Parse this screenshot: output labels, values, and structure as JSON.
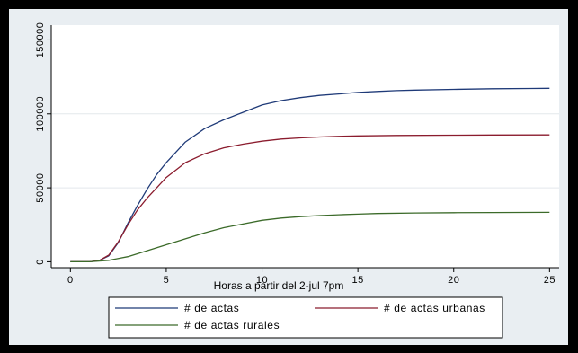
{
  "chart_data": {
    "type": "line",
    "xlabel": "Horas a partir del 2-jul 7pm",
    "ylabel": "",
    "xlim": [
      -1,
      25.5
    ],
    "ylim": [
      -4000,
      160000
    ],
    "xticks": [
      0,
      5,
      10,
      15,
      20,
      25
    ],
    "yticks": [
      0,
      50000,
      100000,
      150000
    ],
    "ytick_labels": [
      "0",
      "50000",
      "100000",
      "150000"
    ],
    "grid": true,
    "legend_position": "bottom",
    "series": [
      {
        "name": "# de actas",
        "color": "#1f3a78",
        "points": [
          [
            0,
            0
          ],
          [
            1,
            0
          ],
          [
            1.5,
            800
          ],
          [
            2,
            4000
          ],
          [
            2.5,
            13000
          ],
          [
            3,
            26000
          ],
          [
            3.5,
            38000
          ],
          [
            4,
            49000
          ],
          [
            4.5,
            59000
          ],
          [
            5,
            67000
          ],
          [
            6,
            81000
          ],
          [
            7,
            90000
          ],
          [
            8,
            96000
          ],
          [
            9,
            101000
          ],
          [
            10,
            106000
          ],
          [
            11,
            109000
          ],
          [
            12,
            111000
          ],
          [
            13,
            112500
          ],
          [
            14,
            113500
          ],
          [
            15,
            114500
          ],
          [
            16,
            115200
          ],
          [
            17,
            115700
          ],
          [
            18,
            116100
          ],
          [
            20,
            116600
          ],
          [
            22,
            117000
          ],
          [
            24,
            117200
          ],
          [
            25,
            117300
          ]
        ]
      },
      {
        "name": "# de actas urbanas",
        "color": "#8b1c2e",
        "points": [
          [
            0,
            0
          ],
          [
            1,
            0
          ],
          [
            1.5,
            800
          ],
          [
            2,
            4500
          ],
          [
            2.5,
            13500
          ],
          [
            3,
            25000
          ],
          [
            3.5,
            35000
          ],
          [
            4,
            43000
          ],
          [
            4.5,
            50000
          ],
          [
            5,
            57000
          ],
          [
            6,
            67000
          ],
          [
            7,
            73000
          ],
          [
            8,
            77000
          ],
          [
            9,
            79500
          ],
          [
            10,
            81500
          ],
          [
            11,
            83000
          ],
          [
            12,
            83800
          ],
          [
            13,
            84400
          ],
          [
            14,
            84800
          ],
          [
            15,
            85100
          ],
          [
            17,
            85400
          ],
          [
            20,
            85600
          ],
          [
            22,
            85700
          ],
          [
            25,
            85800
          ]
        ]
      },
      {
        "name": "# de actas rurales",
        "color": "#3c6b2a",
        "points": [
          [
            0,
            0
          ],
          [
            1,
            0
          ],
          [
            2,
            1000
          ],
          [
            3,
            3500
          ],
          [
            4,
            7500
          ],
          [
            5,
            11500
          ],
          [
            6,
            15500
          ],
          [
            7,
            19500
          ],
          [
            8,
            23000
          ],
          [
            9,
            25500
          ],
          [
            10,
            28000
          ],
          [
            11,
            29500
          ],
          [
            12,
            30500
          ],
          [
            13,
            31200
          ],
          [
            14,
            31800
          ],
          [
            15,
            32200
          ],
          [
            16,
            32600
          ],
          [
            18,
            33000
          ],
          [
            20,
            33200
          ],
          [
            22,
            33300
          ],
          [
            25,
            33400
          ]
        ]
      }
    ]
  }
}
